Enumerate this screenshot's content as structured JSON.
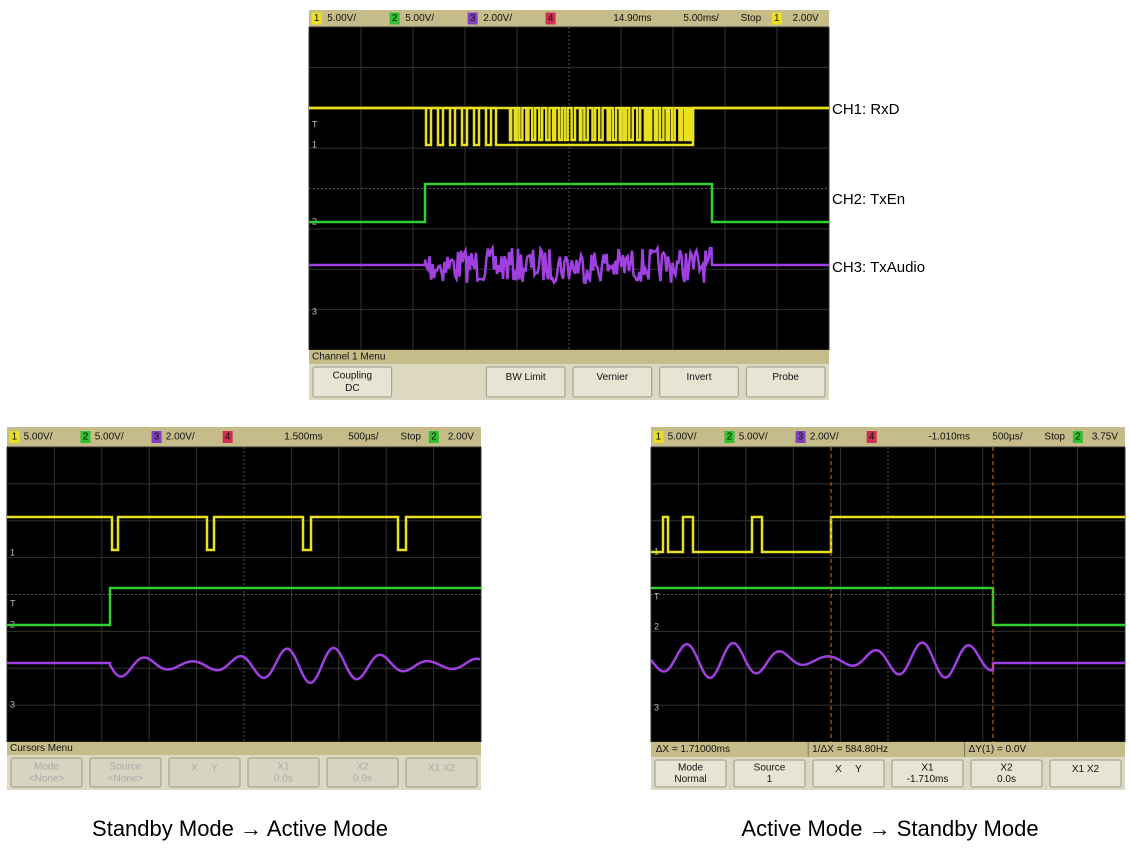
{
  "scopes": [
    {
      "header": [
        "1",
        "5.00V/",
        "2",
        "5.00V/",
        "3",
        "2.00V/",
        "4",
        "14.90ms",
        "5.00ms/",
        "Stop",
        "1",
        "2.00V"
      ],
      "markers": [
        "T",
        "1",
        "2",
        "3"
      ],
      "menu_title": "Channel 1 Menu",
      "softkeys": [
        {
          "lines": [
            "Coupling",
            "DC"
          ]
        },
        {
          "lines": [
            "BW Limit"
          ]
        },
        {
          "lines": [
            "Vernier"
          ]
        },
        {
          "lines": [
            "Invert"
          ]
        },
        {
          "lines": [
            "Probe"
          ]
        }
      ]
    },
    {
      "header": [
        "1",
        "5.00V/",
        "2",
        "5.00V/",
        "3",
        "2.00V/",
        "4",
        "1.500ms",
        "500µs/",
        "Stop",
        "2",
        "2.00V"
      ],
      "markers": [
        "1",
        "T",
        "2",
        "3"
      ],
      "menu_title": "Cursors Menu",
      "softkeys": [
        {
          "lines": [
            "Mode",
            "<None>"
          ]
        },
        {
          "lines": [
            "Source",
            "<None>"
          ]
        },
        {
          "row": [
            "X",
            "Y"
          ]
        },
        {
          "lines": [
            "X1",
            "0.0s"
          ]
        },
        {
          "lines": [
            "X2",
            "0.0s"
          ]
        },
        {
          "lines": [
            "X1 X2"
          ]
        }
      ]
    },
    {
      "header": [
        "1",
        "5.00V/",
        "2",
        "5.00V/",
        "3",
        "2.00V/",
        "4",
        "-1.010ms",
        "500µs/",
        "Stop",
        "2",
        "3.75V"
      ],
      "markers": [
        "1",
        "T",
        "2",
        "3"
      ],
      "status": [
        "ΔX = 1.71000ms",
        "1/ΔX = 584.80Hz",
        "ΔY(1) = 0.0V"
      ],
      "softkeys": [
        {
          "lines": [
            "Mode",
            "Normal"
          ]
        },
        {
          "lines": [
            "Source",
            "1"
          ]
        },
        {
          "row": [
            "X",
            "Y"
          ]
        },
        {
          "lines": [
            "X1",
            "-1.710ms"
          ]
        },
        {
          "lines": [
            "X2",
            "0.0s"
          ]
        },
        {
          "lines": [
            "X1 X2"
          ]
        }
      ]
    }
  ],
  "channel_labels": [
    "CH1: RxD",
    "CH2: TxEn",
    "CH3: TxAudio"
  ],
  "captions": [
    "Standby Mode → Active Mode",
    "Active Mode → Standby Mode"
  ]
}
